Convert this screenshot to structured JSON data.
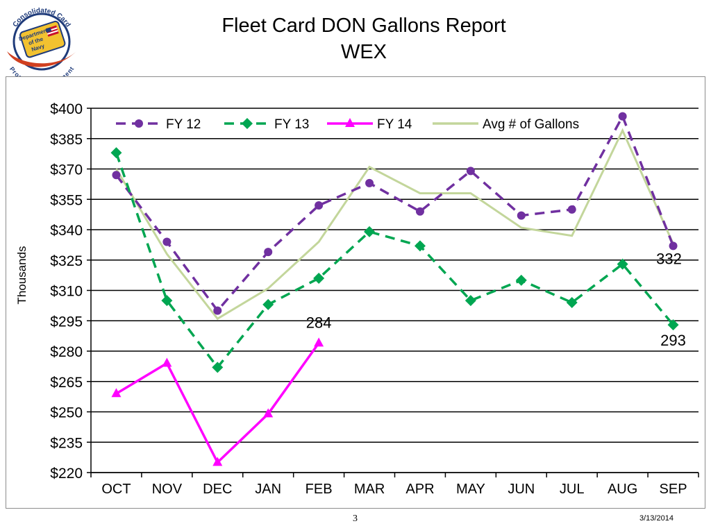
{
  "slide": {
    "title_line1": "Fleet Card DON Gallons Report",
    "title_line2": "WEX",
    "page_number": "3",
    "date": "3/13/2014"
  },
  "logo": {
    "ring_text_top": "Consolidated Card",
    "ring_text_bottom": "Program Management",
    "badge_lines": [
      "Department",
      "of the",
      "Navy"
    ],
    "colors": {
      "ring": "#1f3b7a",
      "badge": "#f2c230",
      "flag_red": "#c8102e",
      "accent": "#d04020"
    }
  },
  "chart_data": {
    "type": "line",
    "categories": [
      "OCT",
      "NOV",
      "DEC",
      "JAN",
      "FEB",
      "MAR",
      "APR",
      "MAY",
      "JUN",
      "JUL",
      "AUG",
      "SEP"
    ],
    "ylabel": "Thousands",
    "ylim": [
      220,
      400
    ],
    "yticks": [
      220,
      235,
      250,
      265,
      280,
      295,
      310,
      325,
      340,
      355,
      370,
      385,
      400
    ],
    "ytick_prefix": "$",
    "grid": "horizontal",
    "legend_position": "top",
    "series": [
      {
        "name": "FY 12",
        "color": "#7030a0",
        "dash": "dashed",
        "marker": "circle",
        "values": [
          367,
          334,
          300,
          329,
          352,
          363,
          349,
          369,
          347,
          350,
          396,
          332
        ]
      },
      {
        "name": "FY 13",
        "color": "#00a651",
        "dash": "dashed",
        "marker": "diamond",
        "values": [
          378,
          305,
          272,
          303,
          316,
          339,
          332,
          305,
          315,
          304,
          323,
          293
        ]
      },
      {
        "name": "FY 14",
        "color": "#ff00ff",
        "dash": "solid",
        "marker": "triangle",
        "values": [
          259,
          274,
          225,
          249,
          284,
          null,
          null,
          null,
          null,
          null,
          null,
          null
        ]
      },
      {
        "name": "Avg # of Gallons",
        "color": "#c3d69b",
        "dash": "solid",
        "marker": "none",
        "values": [
          370,
          328,
          296,
          311,
          334,
          371,
          358,
          358,
          341,
          337,
          389,
          333
        ]
      }
    ],
    "annotations": [
      {
        "text": "284",
        "category": "FEB",
        "value": 284
      },
      {
        "text": "332",
        "category": "SEP",
        "value": 332
      },
      {
        "text": "293",
        "category": "SEP",
        "value": 293
      }
    ]
  }
}
